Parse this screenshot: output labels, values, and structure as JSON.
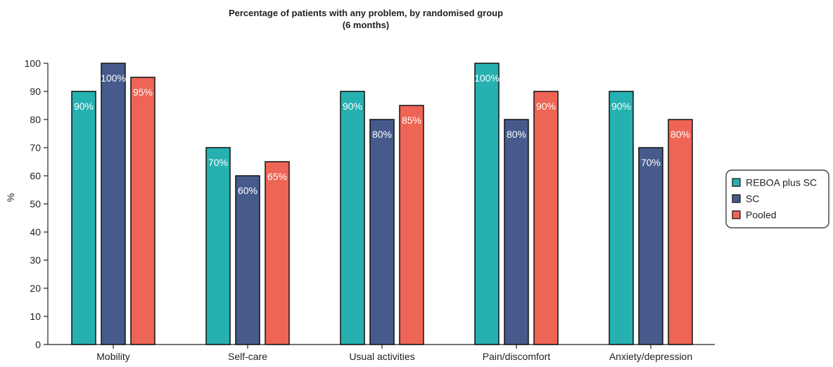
{
  "chart_data": {
    "type": "bar",
    "title": "Percentage of patients with any problem, by randomised group",
    "subtitle": "(6 months)",
    "xlabel": "",
    "ylabel": "%",
    "ylim": [
      0,
      100
    ],
    "yticks": [
      "0",
      "10",
      "20",
      "30",
      "40",
      "50",
      "60",
      "70",
      "80",
      "90",
      "100"
    ],
    "categories": [
      "Mobility",
      "Self-care",
      "Usual activities",
      "Pain/discomfort",
      "Anxiety/depression"
    ],
    "series": [
      {
        "name": "REBOA plus SC",
        "color": "#26b0b0",
        "values": [
          90,
          70,
          90,
          100,
          90
        ],
        "labels": [
          "90%",
          "70%",
          "90%",
          "100%",
          "90%"
        ]
      },
      {
        "name": "SC",
        "color": "#465b8c",
        "values": [
          100,
          60,
          80,
          80,
          70
        ],
        "labels": [
          "100%",
          "60%",
          "80%",
          "80%",
          "70%"
        ]
      },
      {
        "name": "Pooled",
        "color": "#ee6455",
        "values": [
          95,
          65,
          85,
          90,
          80
        ],
        "labels": [
          "95%",
          "65%",
          "85%",
          "90%",
          "80%"
        ]
      }
    ],
    "legend": "right",
    "grid": false
  }
}
